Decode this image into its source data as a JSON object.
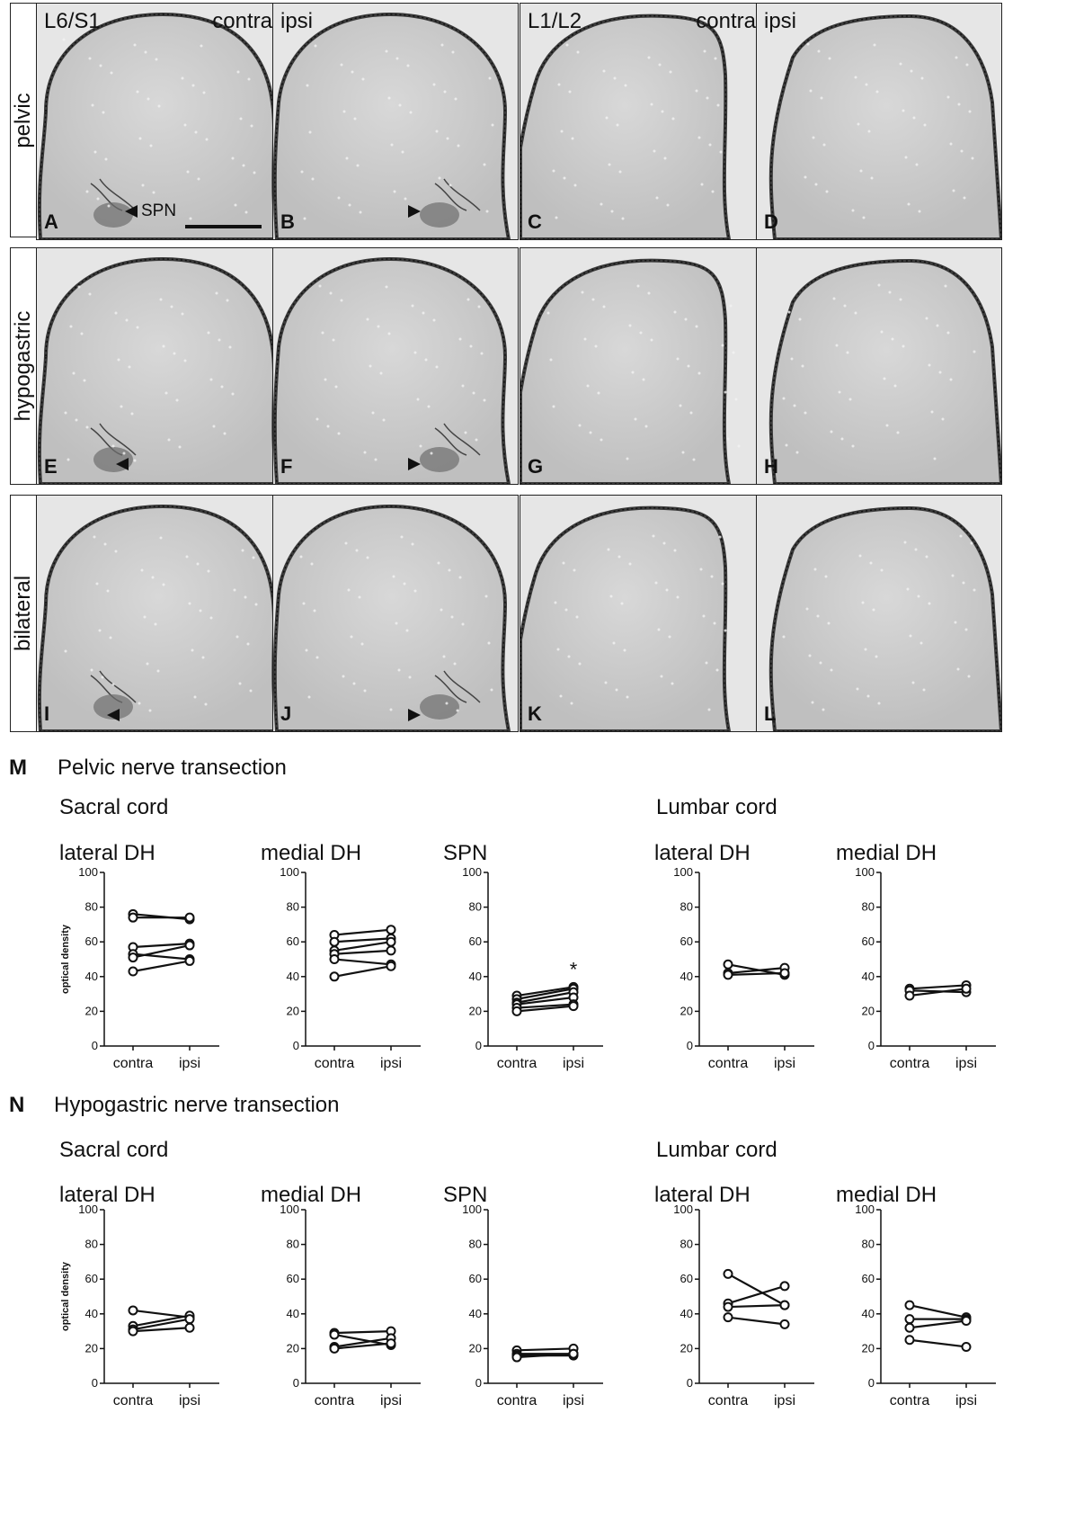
{
  "micrographs": {
    "rows": [
      "pelvic",
      "hypogastric",
      "bilateral"
    ],
    "column_headers": {
      "c1_level": "L6/S1",
      "c1_side": "contra",
      "c2_side": "ipsi",
      "c3_level": "L1/L2",
      "c3_side": "contra",
      "c4_side": "ipsi"
    },
    "panel_letters": [
      "A",
      "B",
      "C",
      "D",
      "E",
      "F",
      "G",
      "H",
      "I",
      "J",
      "K",
      "L"
    ],
    "spn_label": "SPN"
  },
  "section_m": {
    "letter": "M",
    "title": "Pelvic nerve transection",
    "sacral": "Sacral cord",
    "lumbar": "Lumbar cord"
  },
  "section_n": {
    "letter": "N",
    "title": "Hypogastric nerve transection",
    "sacral": "Sacral cord",
    "lumbar": "Lumbar cord"
  },
  "chart_data": [
    {
      "type": "line",
      "title": "lateral DH",
      "ylabel": "optical density",
      "categories": [
        "contra",
        "ipsi"
      ],
      "ylim": [
        0,
        100
      ],
      "yticks": [
        0,
        20,
        40,
        60,
        80,
        100
      ],
      "series": [
        {
          "values": [
            76,
            73
          ]
        },
        {
          "values": [
            74,
            74
          ]
        },
        {
          "values": [
            57,
            59
          ]
        },
        {
          "values": [
            53,
            50
          ]
        },
        {
          "values": [
            51,
            58
          ]
        },
        {
          "values": [
            43,
            49
          ]
        }
      ]
    },
    {
      "type": "line",
      "title": "medial DH",
      "categories": [
        "contra",
        "ipsi"
      ],
      "ylim": [
        0,
        100
      ],
      "yticks": [
        0,
        20,
        40,
        60,
        80,
        100
      ],
      "series": [
        {
          "values": [
            64,
            67
          ]
        },
        {
          "values": [
            60,
            62
          ]
        },
        {
          "values": [
            55,
            60
          ]
        },
        {
          "values": [
            53,
            55
          ]
        },
        {
          "values": [
            50,
            47
          ]
        },
        {
          "values": [
            40,
            46
          ]
        }
      ]
    },
    {
      "type": "line",
      "title": "SPN",
      "categories": [
        "contra",
        "ipsi"
      ],
      "ylim": [
        0,
        100
      ],
      "yticks": [
        0,
        20,
        40,
        60,
        80,
        100
      ],
      "annotation": "*",
      "series": [
        {
          "values": [
            29,
            34
          ]
        },
        {
          "values": [
            27,
            33
          ]
        },
        {
          "values": [
            25,
            31
          ]
        },
        {
          "values": [
            24,
            28
          ]
        },
        {
          "values": [
            22,
            24
          ]
        },
        {
          "values": [
            20,
            23
          ]
        }
      ]
    },
    {
      "type": "line",
      "title": "lateral DH",
      "categories": [
        "contra",
        "ipsi"
      ],
      "ylim": [
        0,
        100
      ],
      "yticks": [
        0,
        20,
        40,
        60,
        80,
        100
      ],
      "series": [
        {
          "values": [
            47,
            41
          ]
        },
        {
          "values": [
            42,
            45
          ]
        },
        {
          "values": [
            41,
            42
          ]
        }
      ]
    },
    {
      "type": "line",
      "title": "medial DH",
      "categories": [
        "contra",
        "ipsi"
      ],
      "ylim": [
        0,
        100
      ],
      "yticks": [
        0,
        20,
        40,
        60,
        80,
        100
      ],
      "series": [
        {
          "values": [
            33,
            35
          ]
        },
        {
          "values": [
            32,
            31
          ]
        },
        {
          "values": [
            29,
            33
          ]
        }
      ]
    },
    {
      "type": "line",
      "title": "lateral DH",
      "ylabel": "optical density",
      "categories": [
        "contra",
        "ipsi"
      ],
      "ylim": [
        0,
        100
      ],
      "yticks": [
        0,
        20,
        40,
        60,
        80,
        100
      ],
      "series": [
        {
          "values": [
            42,
            38
          ]
        },
        {
          "values": [
            33,
            39
          ]
        },
        {
          "values": [
            31,
            37
          ]
        },
        {
          "values": [
            30,
            32
          ]
        }
      ]
    },
    {
      "type": "line",
      "title": "medial DH",
      "categories": [
        "contra",
        "ipsi"
      ],
      "ylim": [
        0,
        100
      ],
      "yticks": [
        0,
        20,
        40,
        60,
        80,
        100
      ],
      "series": [
        {
          "values": [
            29,
            30
          ]
        },
        {
          "values": [
            28,
            22
          ]
        },
        {
          "values": [
            21,
            26
          ]
        },
        {
          "values": [
            20,
            23
          ]
        }
      ]
    },
    {
      "type": "line",
      "title": "SPN",
      "categories": [
        "contra",
        "ipsi"
      ],
      "ylim": [
        0,
        100
      ],
      "yticks": [
        0,
        20,
        40,
        60,
        80,
        100
      ],
      "series": [
        {
          "values": [
            19,
            20
          ]
        },
        {
          "values": [
            17,
            17
          ]
        },
        {
          "values": [
            16,
            16
          ]
        },
        {
          "values": [
            15,
            17
          ]
        }
      ]
    },
    {
      "type": "line",
      "title": "lateral DH",
      "categories": [
        "contra",
        "ipsi"
      ],
      "ylim": [
        0,
        100
      ],
      "yticks": [
        0,
        20,
        40,
        60,
        80,
        100
      ],
      "series": [
        {
          "values": [
            63,
            45
          ]
        },
        {
          "values": [
            46,
            56
          ]
        },
        {
          "values": [
            44,
            45
          ]
        },
        {
          "values": [
            38,
            34
          ]
        }
      ]
    },
    {
      "type": "line",
      "title": "medial DH",
      "categories": [
        "contra",
        "ipsi"
      ],
      "ylim": [
        0,
        100
      ],
      "yticks": [
        0,
        20,
        40,
        60,
        80,
        100
      ],
      "series": [
        {
          "values": [
            45,
            38
          ]
        },
        {
          "values": [
            37,
            37
          ]
        },
        {
          "values": [
            32,
            36
          ]
        },
        {
          "values": [
            25,
            21
          ]
        }
      ]
    }
  ]
}
